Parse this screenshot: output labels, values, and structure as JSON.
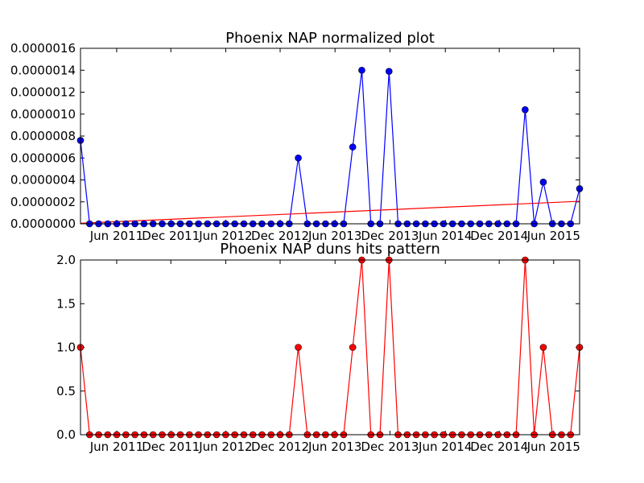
{
  "chart_data": [
    {
      "type": "line",
      "title": "Phoenix NAP normalized plot",
      "xlabel": "",
      "ylabel": "",
      "ylim": [
        0,
        1.6e-06
      ],
      "yticks": [
        "0.0000000",
        "0.0000002",
        "0.0000004",
        "0.0000006",
        "0.0000008",
        "0.0000010",
        "0.0000012",
        "0.0000014",
        "0.0000016"
      ],
      "xticks": [
        "Jun 2011",
        "Dec 2011",
        "Jun 2012",
        "Dec 2012",
        "Jun 2013",
        "Dec 2013",
        "Jun 2014",
        "Dec 2014",
        "Jun 2015"
      ],
      "series": [
        {
          "color": "#0000ff",
          "marker_color": "#0000ff",
          "values": [
            7.6e-07,
            0,
            0,
            0,
            0,
            0,
            0,
            0,
            0,
            0,
            0,
            0,
            0,
            0,
            0,
            0,
            0,
            0,
            0,
            0,
            0,
            0,
            0,
            0,
            6e-07,
            0,
            0,
            0,
            0,
            0,
            7e-07,
            1.4e-06,
            0,
            0,
            1.39e-06,
            0,
            0,
            0,
            0,
            0,
            0,
            0,
            0,
            0,
            0,
            0,
            0,
            0,
            0,
            1.04e-06,
            0,
            3.8e-07,
            0,
            0,
            0,
            3.2e-07
          ]
        }
      ],
      "trendline": {
        "color": "#ff0000",
        "values": [
          5e-09,
          2.05e-07
        ]
      }
    },
    {
      "type": "line",
      "title": "Phoenix NAP duns hits pattern",
      "xlabel": "",
      "ylabel": "",
      "ylim": [
        0,
        2
      ],
      "yticks": [
        "0.0",
        "0.5",
        "1.0",
        "1.5",
        "2.0"
      ],
      "xticks": [
        "Jun 2011",
        "Dec 2011",
        "Jun 2012",
        "Dec 2012",
        "Jun 2013",
        "Dec 2013",
        "Jun 2014",
        "Dec 2014",
        "Jun 2015"
      ],
      "series": [
        {
          "color": "#ff0000",
          "marker_color": "#ff0000",
          "values": [
            1,
            0,
            0,
            0,
            0,
            0,
            0,
            0,
            0,
            0,
            0,
            0,
            0,
            0,
            0,
            0,
            0,
            0,
            0,
            0,
            0,
            0,
            0,
            0,
            1,
            0,
            0,
            0,
            0,
            0,
            1,
            2,
            0,
            0,
            2,
            0,
            0,
            0,
            0,
            0,
            0,
            0,
            0,
            0,
            0,
            0,
            0,
            0,
            0,
            2,
            0,
            1,
            0,
            0,
            0,
            1
          ]
        }
      ]
    }
  ]
}
